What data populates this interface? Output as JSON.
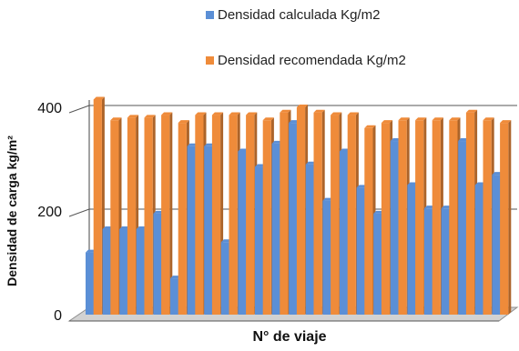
{
  "chart_data": {
    "type": "bar",
    "xlabel": "N° de viaje",
    "ylabel": "Densidad de carga kg/m²",
    "ylim": [
      0,
      400
    ],
    "yticks": [
      0,
      200,
      400
    ],
    "grid": false,
    "legend_position": "top",
    "colors": {
      "series_1": "#5b8fd6",
      "series_2": "#ef8b3a",
      "floor": "#c9c9c9",
      "gridline": "#555555"
    },
    "series": [
      {
        "name": "Densidad calculada Kg/m2",
        "values": [
          120,
          165,
          165,
          165,
          195,
          70,
          325,
          325,
          140,
          315,
          285,
          330,
          370,
          290,
          220,
          315,
          245,
          195,
          335,
          250,
          205,
          205,
          335,
          250,
          270
        ]
      },
      {
        "name": "Densidad recomendada Kg/m2",
        "values": [
          415,
          375,
          380,
          380,
          385,
          370,
          385,
          385,
          385,
          385,
          375,
          390,
          400,
          390,
          385,
          385,
          360,
          370,
          375,
          375,
          375,
          375,
          390,
          375,
          370
        ]
      }
    ]
  }
}
